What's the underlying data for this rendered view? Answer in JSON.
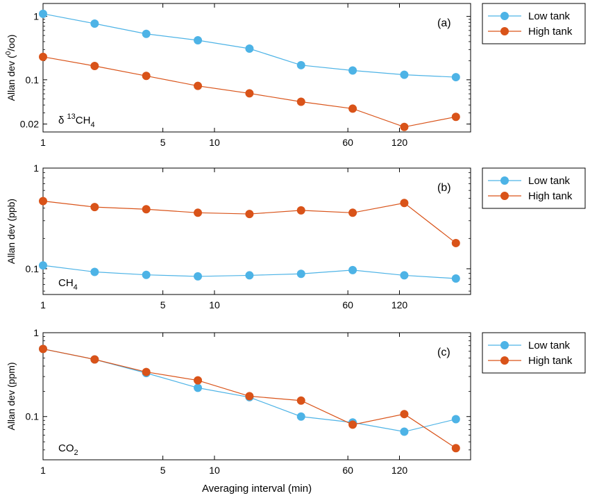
{
  "colors": {
    "low": "#4db3e6",
    "high": "#d95319"
  },
  "chart_data": [
    {
      "type": "line",
      "panel_label": "(a)",
      "species": {
        "prefix": "δ ",
        "sup": "13",
        "base": "CH",
        "sub": "4"
      },
      "ylabel": {
        "base": "Allan dev (",
        "sup": "0",
        "rest": "/oo)"
      },
      "xlabel": "",
      "xscale": "log",
      "yscale": "log",
      "xlim": [
        1,
        312
      ],
      "ylim": [
        0.015,
        1.6
      ],
      "x": [
        1,
        2,
        4,
        8,
        16,
        32,
        64,
        128,
        256
      ],
      "xticks": [
        1,
        5,
        10,
        60,
        120
      ],
      "xticklabels": [
        "1",
        "5",
        "10",
        "60",
        "120"
      ],
      "yticks": [
        1,
        0.1,
        0.02
      ],
      "yticklabels": [
        "1",
        "0.1",
        "0.02"
      ],
      "legend": "outside-right",
      "series": [
        {
          "name": "Low tank",
          "key": "low",
          "values": [
            1.1,
            0.77,
            0.53,
            0.42,
            0.31,
            0.17,
            0.14,
            0.12,
            0.11
          ]
        },
        {
          "name": "High tank",
          "key": "high",
          "values": [
            0.23,
            0.165,
            0.115,
            0.08,
            0.061,
            0.045,
            0.035,
            0.018,
            0.026
          ]
        }
      ]
    },
    {
      "type": "line",
      "panel_label": "(b)",
      "species": {
        "prefix": "",
        "sup": "",
        "base": "CH",
        "sub": "4"
      },
      "ylabel": {
        "base": "Allan dev (ppb)",
        "sup": "",
        "rest": ""
      },
      "xlabel": "",
      "xscale": "log",
      "yscale": "log",
      "xlim": [
        1,
        312
      ],
      "ylim": [
        0.0555,
        1.0
      ],
      "x": [
        1,
        2,
        4,
        8,
        16,
        32,
        64,
        128,
        256
      ],
      "xticks": [
        1,
        5,
        10,
        60,
        120
      ],
      "xticklabels": [
        "1",
        "5",
        "10",
        "60",
        "120"
      ],
      "yticks": [
        1,
        0.1
      ],
      "yticklabels": [
        "1",
        "0.1"
      ],
      "legend": "outside-right",
      "series": [
        {
          "name": "Low tank",
          "key": "low",
          "values": [
            0.108,
            0.093,
            0.087,
            0.084,
            0.086,
            0.089,
            0.097,
            0.086,
            0.08
          ]
        },
        {
          "name": "High tank",
          "key": "high",
          "values": [
            0.47,
            0.41,
            0.39,
            0.36,
            0.35,
            0.38,
            0.36,
            0.45,
            0.18
          ]
        }
      ]
    },
    {
      "type": "line",
      "panel_label": "(c)",
      "species": {
        "prefix": "",
        "sup": "",
        "base": "CO",
        "sub": "2"
      },
      "ylabel": {
        "base": "Allan dev (ppm)",
        "sup": "",
        "rest": ""
      },
      "xlabel": "Averaging interval (min)",
      "xscale": "log",
      "yscale": "log",
      "xlim": [
        1,
        312
      ],
      "ylim": [
        0.0305,
        1.0
      ],
      "x": [
        1,
        2,
        4,
        8,
        16,
        32,
        64,
        128,
        256
      ],
      "xticks": [
        1,
        5,
        10,
        60,
        120
      ],
      "xticklabels": [
        "1",
        "5",
        "10",
        "60",
        "120"
      ],
      "yticks": [
        1,
        0.1
      ],
      "yticklabels": [
        "1",
        "0.1"
      ],
      "legend": "outside-right",
      "series": [
        {
          "name": "Low tank",
          "key": "low",
          "values": [
            0.64,
            0.48,
            0.33,
            0.22,
            0.17,
            0.1,
            0.085,
            0.066,
            0.093
          ]
        },
        {
          "name": "High tank",
          "key": "high",
          "values": [
            0.64,
            0.48,
            0.34,
            0.27,
            0.175,
            0.155,
            0.08,
            0.107,
            0.042
          ]
        }
      ]
    }
  ]
}
